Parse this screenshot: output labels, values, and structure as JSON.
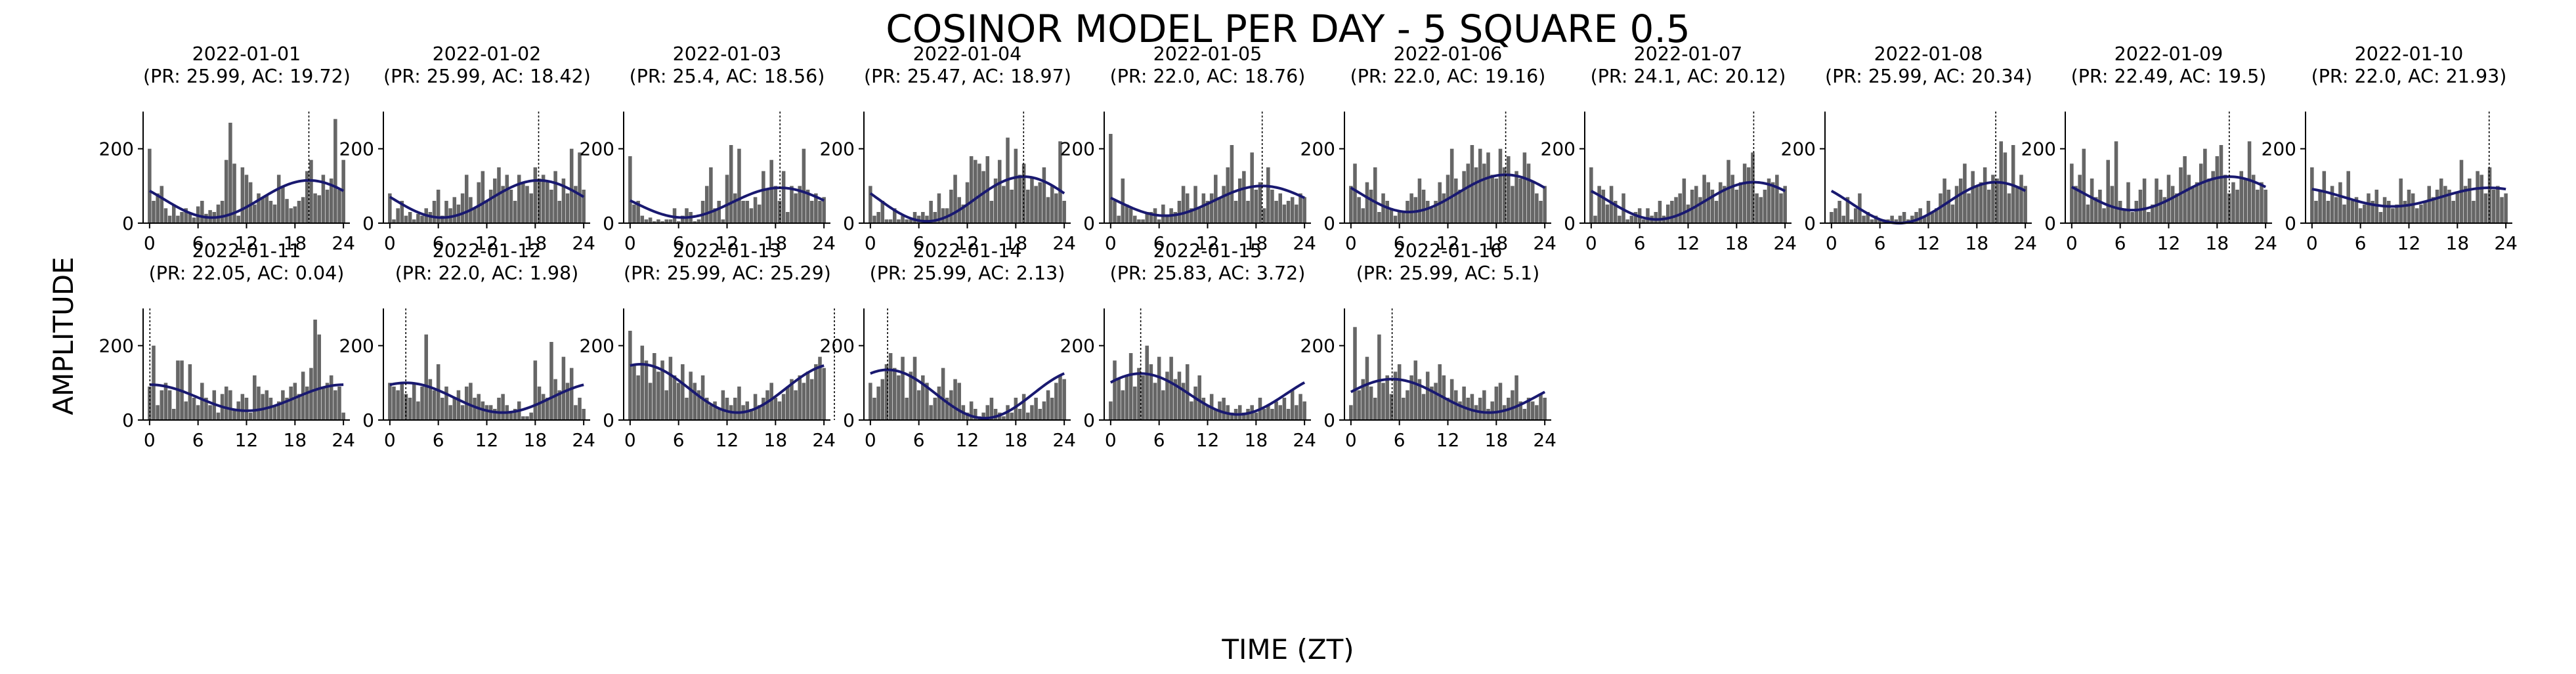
{
  "figure": {
    "title": "COSINOR MODEL PER DAY - 5 SQUARE 0.5",
    "xlabel": "TIME (ZT)",
    "ylabel": "AMPLITUDE"
  },
  "chart_data": {
    "type": "bar",
    "title": "COSINOR MODEL PER DAY - 5 SQUARE 0.5",
    "xlabel": "TIME (ZT)",
    "ylabel": "AMPLITUDE",
    "layout": {
      "rows": 2,
      "cols": 10
    },
    "xlim": [
      -0.8,
      24.8
    ],
    "ylim": [
      0,
      300
    ],
    "xticks": [
      0,
      6,
      12,
      18,
      24
    ],
    "yticks": [
      0,
      200
    ],
    "grid": false,
    "bar_color": "#666666",
    "fit_color": "#191970",
    "acrophase_line_color": "#000000",
    "bar_width_hours": 0.45,
    "panels": [
      {
        "title": "2022-01-01",
        "params": "(PR: 25.99, AC: 19.72)",
        "acrophase": 19.72,
        "fit": {
          "mesor": 65,
          "amplitude": 50
        },
        "bars": [
          200,
          60,
          80,
          100,
          40,
          20,
          50,
          20,
          30,
          40,
          25,
          15,
          45,
          60,
          25,
          35,
          30,
          50,
          60,
          170,
          270,
          160,
          20,
          150,
          130,
          110,
          50,
          80,
          70,
          75,
          60,
          50,
          130,
          100,
          65,
          40,
          45,
          60,
          70,
          140,
          170,
          80,
          75,
          130,
          90,
          120,
          280,
          90,
          170
        ]
      },
      {
        "title": "2022-01-02",
        "params": "(PR: 25.99, AC: 18.42)",
        "acrophase": 18.42,
        "fit": {
          "mesor": 65,
          "amplitude": 50
        },
        "bars": [
          80,
          10,
          40,
          60,
          20,
          30,
          10,
          25,
          20,
          40,
          30,
          60,
          90,
          20,
          60,
          40,
          70,
          50,
          80,
          130,
          70,
          40,
          110,
          140,
          60,
          90,
          120,
          150,
          100,
          130,
          90,
          60,
          130,
          110,
          100,
          80,
          150,
          120,
          130,
          110,
          90,
          140,
          60,
          120,
          80,
          200,
          100,
          190,
          90
        ]
      },
      {
        "title": "2022-01-03",
        "params": "(PR: 25.4, AC: 18.56)",
        "acrophase": 18.56,
        "fit": {
          "mesor": 55,
          "amplitude": 40
        },
        "bars": [
          180,
          50,
          60,
          20,
          10,
          15,
          5,
          10,
          5,
          10,
          10,
          40,
          5,
          20,
          40,
          30,
          5,
          10,
          60,
          100,
          150,
          40,
          60,
          10,
          130,
          210,
          80,
          200,
          60,
          60,
          40,
          70,
          50,
          140,
          90,
          170,
          100,
          60,
          140,
          30,
          100,
          80,
          100,
          200,
          90,
          60,
          80,
          60,
          70
        ]
      },
      {
        "title": "2022-01-04",
        "params": "(PR: 25.47, AC: 18.97)",
        "acrophase": 18.97,
        "fit": {
          "mesor": 65,
          "amplitude": 60
        },
        "bars": [
          100,
          20,
          30,
          60,
          10,
          10,
          40,
          10,
          20,
          10,
          10,
          30,
          20,
          30,
          20,
          60,
          30,
          80,
          40,
          40,
          90,
          130,
          70,
          50,
          110,
          180,
          170,
          160,
          140,
          180,
          60,
          120,
          170,
          100,
          230,
          90,
          200,
          130,
          160,
          90,
          120,
          100,
          110,
          150,
          70,
          100,
          80,
          220,
          60
        ]
      },
      {
        "title": "2022-01-05",
        "params": "(PR: 22.0, AC: 18.76)",
        "acrophase": 18.76,
        "fit": {
          "mesor": 60,
          "amplitude": 40
        },
        "bars": [
          240,
          60,
          20,
          120,
          50,
          40,
          20,
          10,
          10,
          30,
          30,
          40,
          10,
          50,
          20,
          40,
          30,
          60,
          100,
          80,
          40,
          100,
          40,
          80,
          60,
          80,
          130,
          70,
          100,
          150,
          210,
          60,
          120,
          140,
          60,
          190,
          90,
          110,
          40,
          150,
          90,
          60,
          80,
          50,
          60,
          70,
          50,
          80,
          70
        ]
      },
      {
        "title": "2022-01-06",
        "params": "(PR: 22.0, AC: 19.16)",
        "acrophase": 19.16,
        "fit": {
          "mesor": 80,
          "amplitude": 50
        },
        "bars": [
          100,
          160,
          70,
          40,
          110,
          90,
          150,
          30,
          80,
          60,
          40,
          20,
          30,
          30,
          60,
          80,
          70,
          120,
          90,
          60,
          40,
          60,
          110,
          80,
          130,
          200,
          120,
          90,
          140,
          160,
          210,
          150,
          200,
          160,
          190,
          130,
          120,
          200,
          150,
          180,
          100,
          140,
          120,
          190,
          160,
          110,
          80,
          60,
          100
        ]
      },
      {
        "title": "2022-01-07",
        "params": "(PR: 24.1, AC: 20.12)",
        "acrophase": 20.12,
        "fit": {
          "mesor": 60,
          "amplitude": 50
        },
        "bars": [
          150,
          20,
          100,
          90,
          50,
          100,
          60,
          20,
          80,
          10,
          20,
          30,
          40,
          10,
          40,
          20,
          30,
          60,
          20,
          50,
          60,
          70,
          80,
          120,
          50,
          90,
          100,
          70,
          130,
          110,
          90,
          60,
          110,
          100,
          170,
          130,
          90,
          110,
          160,
          150,
          190,
          80,
          70,
          90,
          120,
          110,
          130,
          80,
          100
        ]
      },
      {
        "title": "2022-01-08",
        "params": "(PR: 25.99, AC: 20.34)",
        "acrophase": 20.34,
        "fit": {
          "mesor": 55,
          "amplitude": 55
        },
        "bars": [
          30,
          40,
          60,
          20,
          70,
          10,
          40,
          80,
          20,
          30,
          10,
          20,
          10,
          10,
          10,
          20,
          10,
          20,
          30,
          10,
          20,
          30,
          40,
          20,
          60,
          30,
          40,
          80,
          120,
          90,
          50,
          100,
          120,
          160,
          80,
          140,
          100,
          110,
          150,
          90,
          130,
          120,
          220,
          190,
          80,
          210,
          100,
          130,
          100
        ]
      },
      {
        "title": "2022-01-09",
        "params": "(PR: 22.49, AC: 19.5)",
        "acrophase": 19.5,
        "fit": {
          "mesor": 80,
          "amplitude": 45
        },
        "bars": [
          160,
          100,
          130,
          200,
          50,
          120,
          70,
          90,
          40,
          170,
          100,
          220,
          60,
          40,
          110,
          30,
          60,
          90,
          120,
          30,
          50,
          120,
          90,
          70,
          130,
          100,
          80,
          150,
          180,
          130,
          100,
          110,
          160,
          200,
          120,
          140,
          180,
          210,
          130,
          80,
          110,
          90,
          140,
          120,
          220,
          130,
          90,
          110,
          90
        ]
      },
      {
        "title": "2022-01-10",
        "params": "(PR: 22.0, AC: 21.93)",
        "acrophase": 21.93,
        "fit": {
          "mesor": 70,
          "amplitude": 25
        },
        "bars": [
          150,
          60,
          90,
          140,
          60,
          100,
          70,
          110,
          50,
          140,
          60,
          70,
          40,
          50,
          80,
          60,
          90,
          30,
          70,
          60,
          40,
          50,
          120,
          60,
          90,
          80,
          40,
          50,
          60,
          100,
          70,
          90,
          120,
          100,
          90,
          60,
          80,
          170,
          100,
          120,
          60,
          140,
          130,
          80,
          150,
          90,
          100,
          70,
          80
        ]
      },
      {
        "title": "2022-01-11",
        "params": "(PR: 22.05, AC: 0.04)",
        "acrophase": 0.04,
        "fit": {
          "mesor": 60,
          "amplitude": 35
        },
        "bars": [
          90,
          200,
          40,
          80,
          100,
          80,
          30,
          160,
          160,
          50,
          150,
          60,
          40,
          100,
          60,
          40,
          80,
          20,
          70,
          90,
          80,
          30,
          50,
          70,
          60,
          20,
          120,
          90,
          70,
          80,
          60,
          40,
          50,
          80,
          60,
          90,
          100,
          70,
          130,
          90,
          140,
          270,
          230,
          90,
          100,
          120,
          80,
          90,
          20
        ]
      },
      {
        "title": "2022-01-12",
        "params": "(PR: 22.0, AC: 1.98)",
        "acrophase": 1.98,
        "fit": {
          "mesor": 60,
          "amplitude": 40
        },
        "bars": [
          100,
          90,
          80,
          100,
          70,
          60,
          100,
          50,
          90,
          230,
          110,
          80,
          150,
          60,
          90,
          40,
          60,
          80,
          40,
          90,
          100,
          60,
          70,
          50,
          40,
          40,
          30,
          60,
          70,
          40,
          20,
          30,
          50,
          10,
          10,
          20,
          160,
          90,
          70,
          60,
          210,
          110,
          80,
          170,
          100,
          140,
          40,
          60,
          30
        ]
      },
      {
        "title": "2022-01-13",
        "params": "(PR: 25.99, AC: 25.29)",
        "acrophase": 25.29,
        "fit": {
          "mesor": 85,
          "amplitude": 65
        },
        "bars": [
          240,
          150,
          120,
          200,
          160,
          100,
          180,
          130,
          160,
          80,
          170,
          120,
          100,
          150,
          60,
          130,
          100,
          80,
          120,
          60,
          40,
          50,
          30,
          80,
          60,
          40,
          60,
          90,
          40,
          50,
          30,
          70,
          40,
          60,
          80,
          100,
          60,
          50,
          70,
          90,
          110,
          80,
          120,
          100,
          130,
          110,
          150,
          170,
          140
        ]
      },
      {
        "title": "2022-01-14",
        "params": "(PR: 25.99, AC: 2.13)",
        "acrophase": 2.13,
        "fit": {
          "mesor": 70,
          "amplitude": 65
        },
        "bars": [
          100,
          60,
          90,
          110,
          150,
          180,
          140,
          120,
          170,
          60,
          130,
          170,
          80,
          120,
          100,
          40,
          60,
          90,
          140,
          60,
          80,
          110,
          100,
          40,
          20,
          50,
          30,
          10,
          20,
          40,
          60,
          30,
          20,
          10,
          40,
          20,
          60,
          30,
          70,
          20,
          40,
          60,
          30,
          50,
          80,
          60,
          100,
          120,
          110
        ]
      },
      {
        "title": "2022-01-15",
        "params": "(PR: 25.83, AC: 3.72)",
        "acrophase": 3.72,
        "fit": {
          "mesor": 70,
          "amplitude": 55
        },
        "bars": [
          50,
          160,
          110,
          80,
          120,
          180,
          90,
          140,
          120,
          200,
          150,
          100,
          170,
          80,
          130,
          170,
          110,
          130,
          100,
          150,
          50,
          90,
          120,
          60,
          40,
          70,
          30,
          50,
          60,
          40,
          20,
          30,
          40,
          20,
          30,
          40,
          20,
          60,
          30,
          40,
          30,
          50,
          40,
          60,
          30,
          80,
          40,
          70,
          50
        ]
      },
      {
        "title": "2022-01-16",
        "params": "(PR: 25.99, AC: 5.1)",
        "acrophase": 5.1,
        "fit": {
          "mesor": 65,
          "amplitude": 45
        },
        "bars": [
          40,
          250,
          80,
          110,
          170,
          90,
          60,
          230,
          100,
          120,
          70,
          130,
          150,
          60,
          80,
          120,
          160,
          110,
          70,
          130,
          90,
          100,
          150,
          120,
          60,
          110,
          80,
          50,
          90,
          60,
          70,
          40,
          60,
          80,
          30,
          50,
          90,
          100,
          40,
          60,
          80,
          120,
          50,
          30,
          60,
          50,
          40,
          70,
          60
        ]
      }
    ]
  }
}
